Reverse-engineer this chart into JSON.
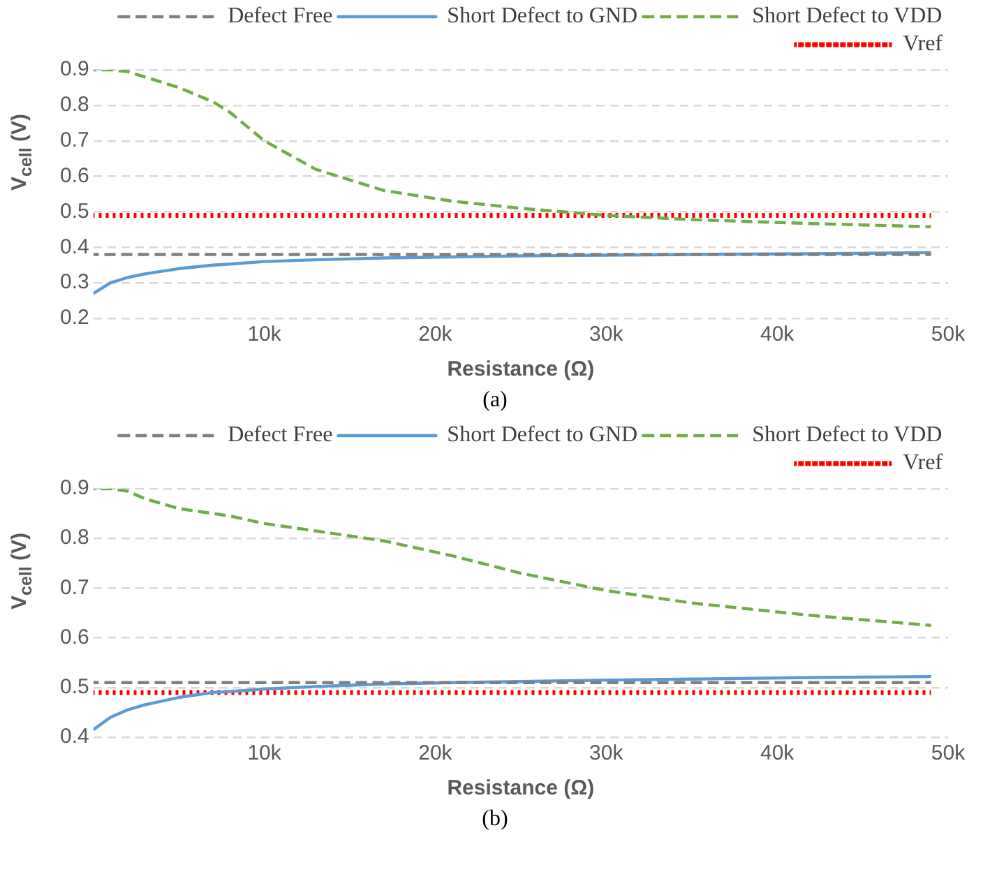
{
  "chart_data": [
    {
      "type": "line",
      "xlabel": "Resistance (Ω)",
      "ylabel": "V$_{cell}$ (V)",
      "annotations": [
        "(a)"
      ],
      "x": [
        0,
        1000,
        2000,
        3000,
        5000,
        7000,
        8000,
        10000,
        13000,
        17000,
        21000,
        25000,
        30000,
        35000,
        42000,
        49000
      ],
      "xlim": [
        0,
        50000
      ],
      "xticks": [
        {
          "value": 10000,
          "label": "10k"
        },
        {
          "value": 20000,
          "label": "20k"
        },
        {
          "value": 30000,
          "label": "30k"
        },
        {
          "value": 40000,
          "label": "40k"
        },
        {
          "value": 50000,
          "label": "50k"
        }
      ],
      "ylim": [
        0.2,
        0.9
      ],
      "yticks": [
        0.2,
        0.3,
        0.4,
        0.5,
        0.6,
        0.7,
        0.8,
        0.9
      ],
      "grid": "y",
      "legend": "top right",
      "series": [
        {
          "name": "Defect Free",
          "color": "#7f7f7f",
          "line_style": "dashed",
          "values": [
            0.38,
            0.38,
            0.38,
            0.38,
            0.38,
            0.38,
            0.38,
            0.38,
            0.38,
            0.38,
            0.38,
            0.38,
            0.38,
            0.38,
            0.38,
            0.38
          ]
        },
        {
          "name": "Short Defect to GND",
          "color": "#5b9bd5",
          "line_style": "solid",
          "values": [
            0.27,
            0.3,
            0.315,
            0.325,
            0.34,
            0.35,
            0.353,
            0.36,
            0.365,
            0.37,
            0.373,
            0.376,
            0.378,
            0.38,
            0.382,
            0.385
          ]
        },
        {
          "name": "Short Defect to VDD",
          "color": "#70ad47",
          "line_style": "dashed",
          "values": [
            0.9,
            0.9,
            0.895,
            0.88,
            0.85,
            0.81,
            0.78,
            0.7,
            0.62,
            0.56,
            0.53,
            0.51,
            0.49,
            0.478,
            0.467,
            0.458
          ]
        },
        {
          "name": "Vref",
          "color": "#ff0000",
          "line_style": "dotted",
          "values": [
            0.49,
            0.49,
            0.49,
            0.49,
            0.49,
            0.49,
            0.49,
            0.49,
            0.49,
            0.49,
            0.49,
            0.49,
            0.49,
            0.49,
            0.49,
            0.49
          ]
        }
      ]
    },
    {
      "type": "line",
      "xlabel": "Resistance (Ω)",
      "ylabel": "V$_{cell}$ (V)",
      "annotations": [
        "(b)"
      ],
      "x": [
        0,
        1000,
        2000,
        3000,
        5000,
        7000,
        8000,
        10000,
        13000,
        17000,
        21000,
        25000,
        30000,
        35000,
        42000,
        49000
      ],
      "xlim": [
        0,
        50000
      ],
      "xticks": [
        {
          "value": 10000,
          "label": "10k"
        },
        {
          "value": 20000,
          "label": "20k"
        },
        {
          "value": 30000,
          "label": "30k"
        },
        {
          "value": 40000,
          "label": "40k"
        },
        {
          "value": 50000,
          "label": "50k"
        }
      ],
      "ylim": [
        0.4,
        0.9
      ],
      "yticks": [
        0.4,
        0.5,
        0.6,
        0.7,
        0.8,
        0.9
      ],
      "grid": "y",
      "legend": "top right",
      "series": [
        {
          "name": "Defect Free",
          "color": "#7f7f7f",
          "line_style": "dashed",
          "values": [
            0.51,
            0.51,
            0.51,
            0.51,
            0.51,
            0.51,
            0.51,
            0.51,
            0.51,
            0.51,
            0.51,
            0.51,
            0.51,
            0.51,
            0.51,
            0.51
          ]
        },
        {
          "name": "Short Defect to GND",
          "color": "#5b9bd5",
          "line_style": "solid",
          "values": [
            0.415,
            0.44,
            0.455,
            0.465,
            0.48,
            0.49,
            0.492,
            0.497,
            0.502,
            0.507,
            0.51,
            0.512,
            0.515,
            0.517,
            0.52,
            0.522
          ]
        },
        {
          "name": "Short Defect to VDD",
          "color": "#70ad47",
          "line_style": "dashed",
          "values": [
            0.9,
            0.9,
            0.895,
            0.88,
            0.86,
            0.85,
            0.845,
            0.83,
            0.815,
            0.795,
            0.765,
            0.73,
            0.695,
            0.67,
            0.645,
            0.625
          ]
        },
        {
          "name": "Vref",
          "color": "#ff0000",
          "line_style": "dotted",
          "values": [
            0.49,
            0.49,
            0.49,
            0.49,
            0.49,
            0.49,
            0.49,
            0.49,
            0.49,
            0.49,
            0.49,
            0.49,
            0.49,
            0.49,
            0.49,
            0.49
          ]
        }
      ]
    }
  ]
}
